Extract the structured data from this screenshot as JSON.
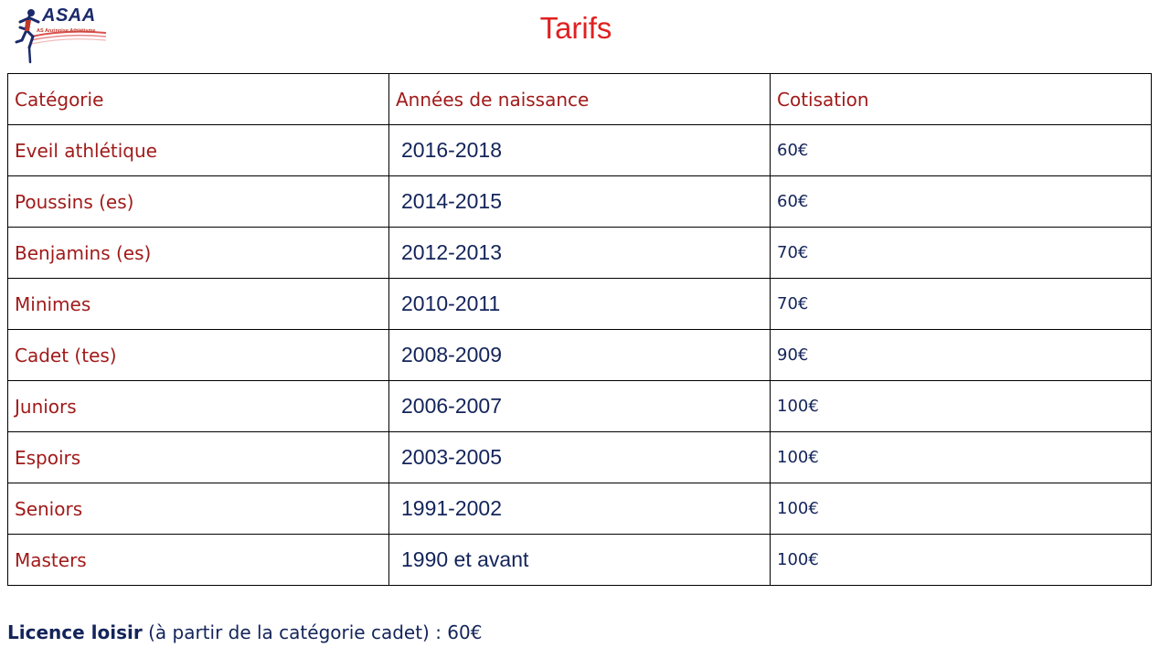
{
  "header": {
    "logo_text": "ASAA",
    "logo_subtitle": "AS Anzinoise Athlétisme",
    "title": "Tarifs"
  },
  "table": {
    "headers": [
      "Catégorie",
      "Années de naissance",
      "Cotisation"
    ],
    "rows": [
      {
        "category": "Eveil athlétique",
        "years": "2016-2018",
        "fee": "60€"
      },
      {
        "category": "Poussins (es)",
        "years": "2014-2015",
        "fee": "60€"
      },
      {
        "category": "Benjamins (es)",
        "years": "2012-2013",
        "fee": "70€"
      },
      {
        "category": "Minimes",
        "years": "2010-2011",
        "fee": "70€"
      },
      {
        "category": "Cadet (tes)",
        "years": "2008-2009",
        "fee": "90€"
      },
      {
        "category": "Juniors",
        "years": "2006-2007",
        "fee": "100€"
      },
      {
        "category": "Espoirs",
        "years": "2003-2005",
        "fee": "100€"
      },
      {
        "category": "Seniors",
        "years": "1991-2002",
        "fee": "100€"
      },
      {
        "category": "Masters",
        "years": "1990 et avant",
        "fee": "100€"
      }
    ]
  },
  "footer": {
    "bold_label": "Licence loisir",
    "text": " (à partir de la catégorie cadet) : 60€"
  },
  "colors": {
    "title": "#e02020",
    "category_text": "#a11a1a",
    "value_text": "#13245a"
  }
}
